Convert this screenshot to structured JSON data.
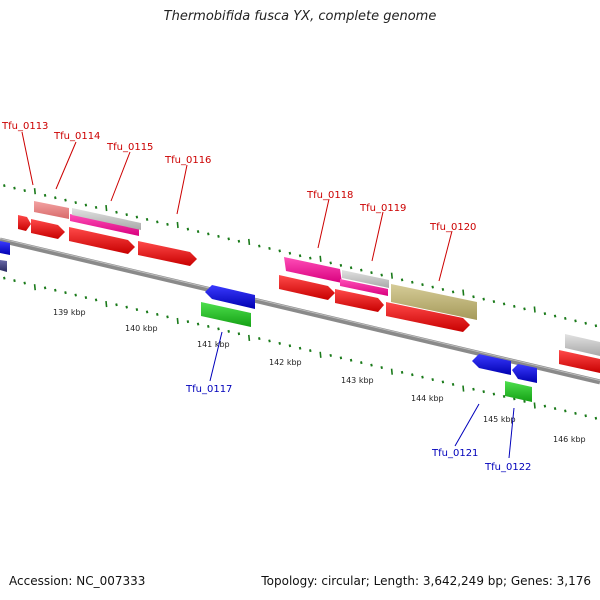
{
  "title": "Thermobifida fusca YX, complete genome",
  "footer": {
    "accession": "Accession: NC_007333",
    "summary": "Topology: circular; Length: 3,642,249 bp; Genes: 3,176"
  },
  "colors": {
    "backbone": "#8a8a8a",
    "forward_label": "#cc0000",
    "reverse_label": "#0000bb",
    "tick": "#1a7a1a"
  },
  "scale_labels": [
    "139 kbp",
    "140 kbp",
    "141 kbp",
    "142 kbp",
    "143 kbp",
    "144 kbp",
    "145 kbp",
    "146 kbp"
  ],
  "gene_labels": {
    "tfu_0113": "Tfu_0113",
    "tfu_0114": "Tfu_0114",
    "tfu_0115": "Tfu_0115",
    "tfu_0116": "Tfu_0116",
    "tfu_0117": "Tfu_0117",
    "tfu_0118": "Tfu_0118",
    "tfu_0119": "Tfu_0119",
    "tfu_0120": "Tfu_0120",
    "tfu_0121": "Tfu_0121",
    "tfu_0122": "Tfu_0122"
  }
}
